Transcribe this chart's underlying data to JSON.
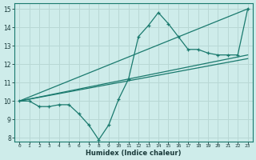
{
  "xlabel": "Humidex (Indice chaleur)",
  "bg_color": "#ceecea",
  "grid_color": "#b8d8d5",
  "line_color": "#1a7a6e",
  "xlim": [
    -0.5,
    23.5
  ],
  "ylim": [
    7.8,
    15.3
  ],
  "xticks": [
    0,
    1,
    2,
    3,
    4,
    5,
    6,
    7,
    8,
    9,
    10,
    11,
    12,
    13,
    14,
    15,
    16,
    17,
    18,
    19,
    20,
    21,
    22,
    23
  ],
  "yticks": [
    8,
    9,
    10,
    11,
    12,
    13,
    14,
    15
  ],
  "series": [
    {
      "x": [
        0,
        1,
        2,
        3,
        4,
        5,
        6,
        7,
        8,
        9,
        10,
        11,
        12,
        13,
        14,
        15,
        16,
        17,
        18,
        19,
        20,
        21,
        22,
        23
      ],
      "y": [
        10,
        10,
        9.7,
        9.7,
        9.8,
        9.8,
        9.3,
        8.7,
        7.9,
        8.7,
        10.1,
        11.2,
        13.5,
        14.1,
        14.8,
        14.2,
        13.5,
        12.8,
        12.8,
        12.6,
        12.5,
        12.5,
        12.5,
        15
      ],
      "marker": true
    },
    {
      "x": [
        0,
        23
      ],
      "y": [
        10,
        15
      ],
      "marker": false
    },
    {
      "x": [
        0,
        23
      ],
      "y": [
        10,
        12.5
      ],
      "marker": false
    },
    {
      "x": [
        0,
        23
      ],
      "y": [
        10,
        12.3
      ],
      "marker": false
    }
  ]
}
